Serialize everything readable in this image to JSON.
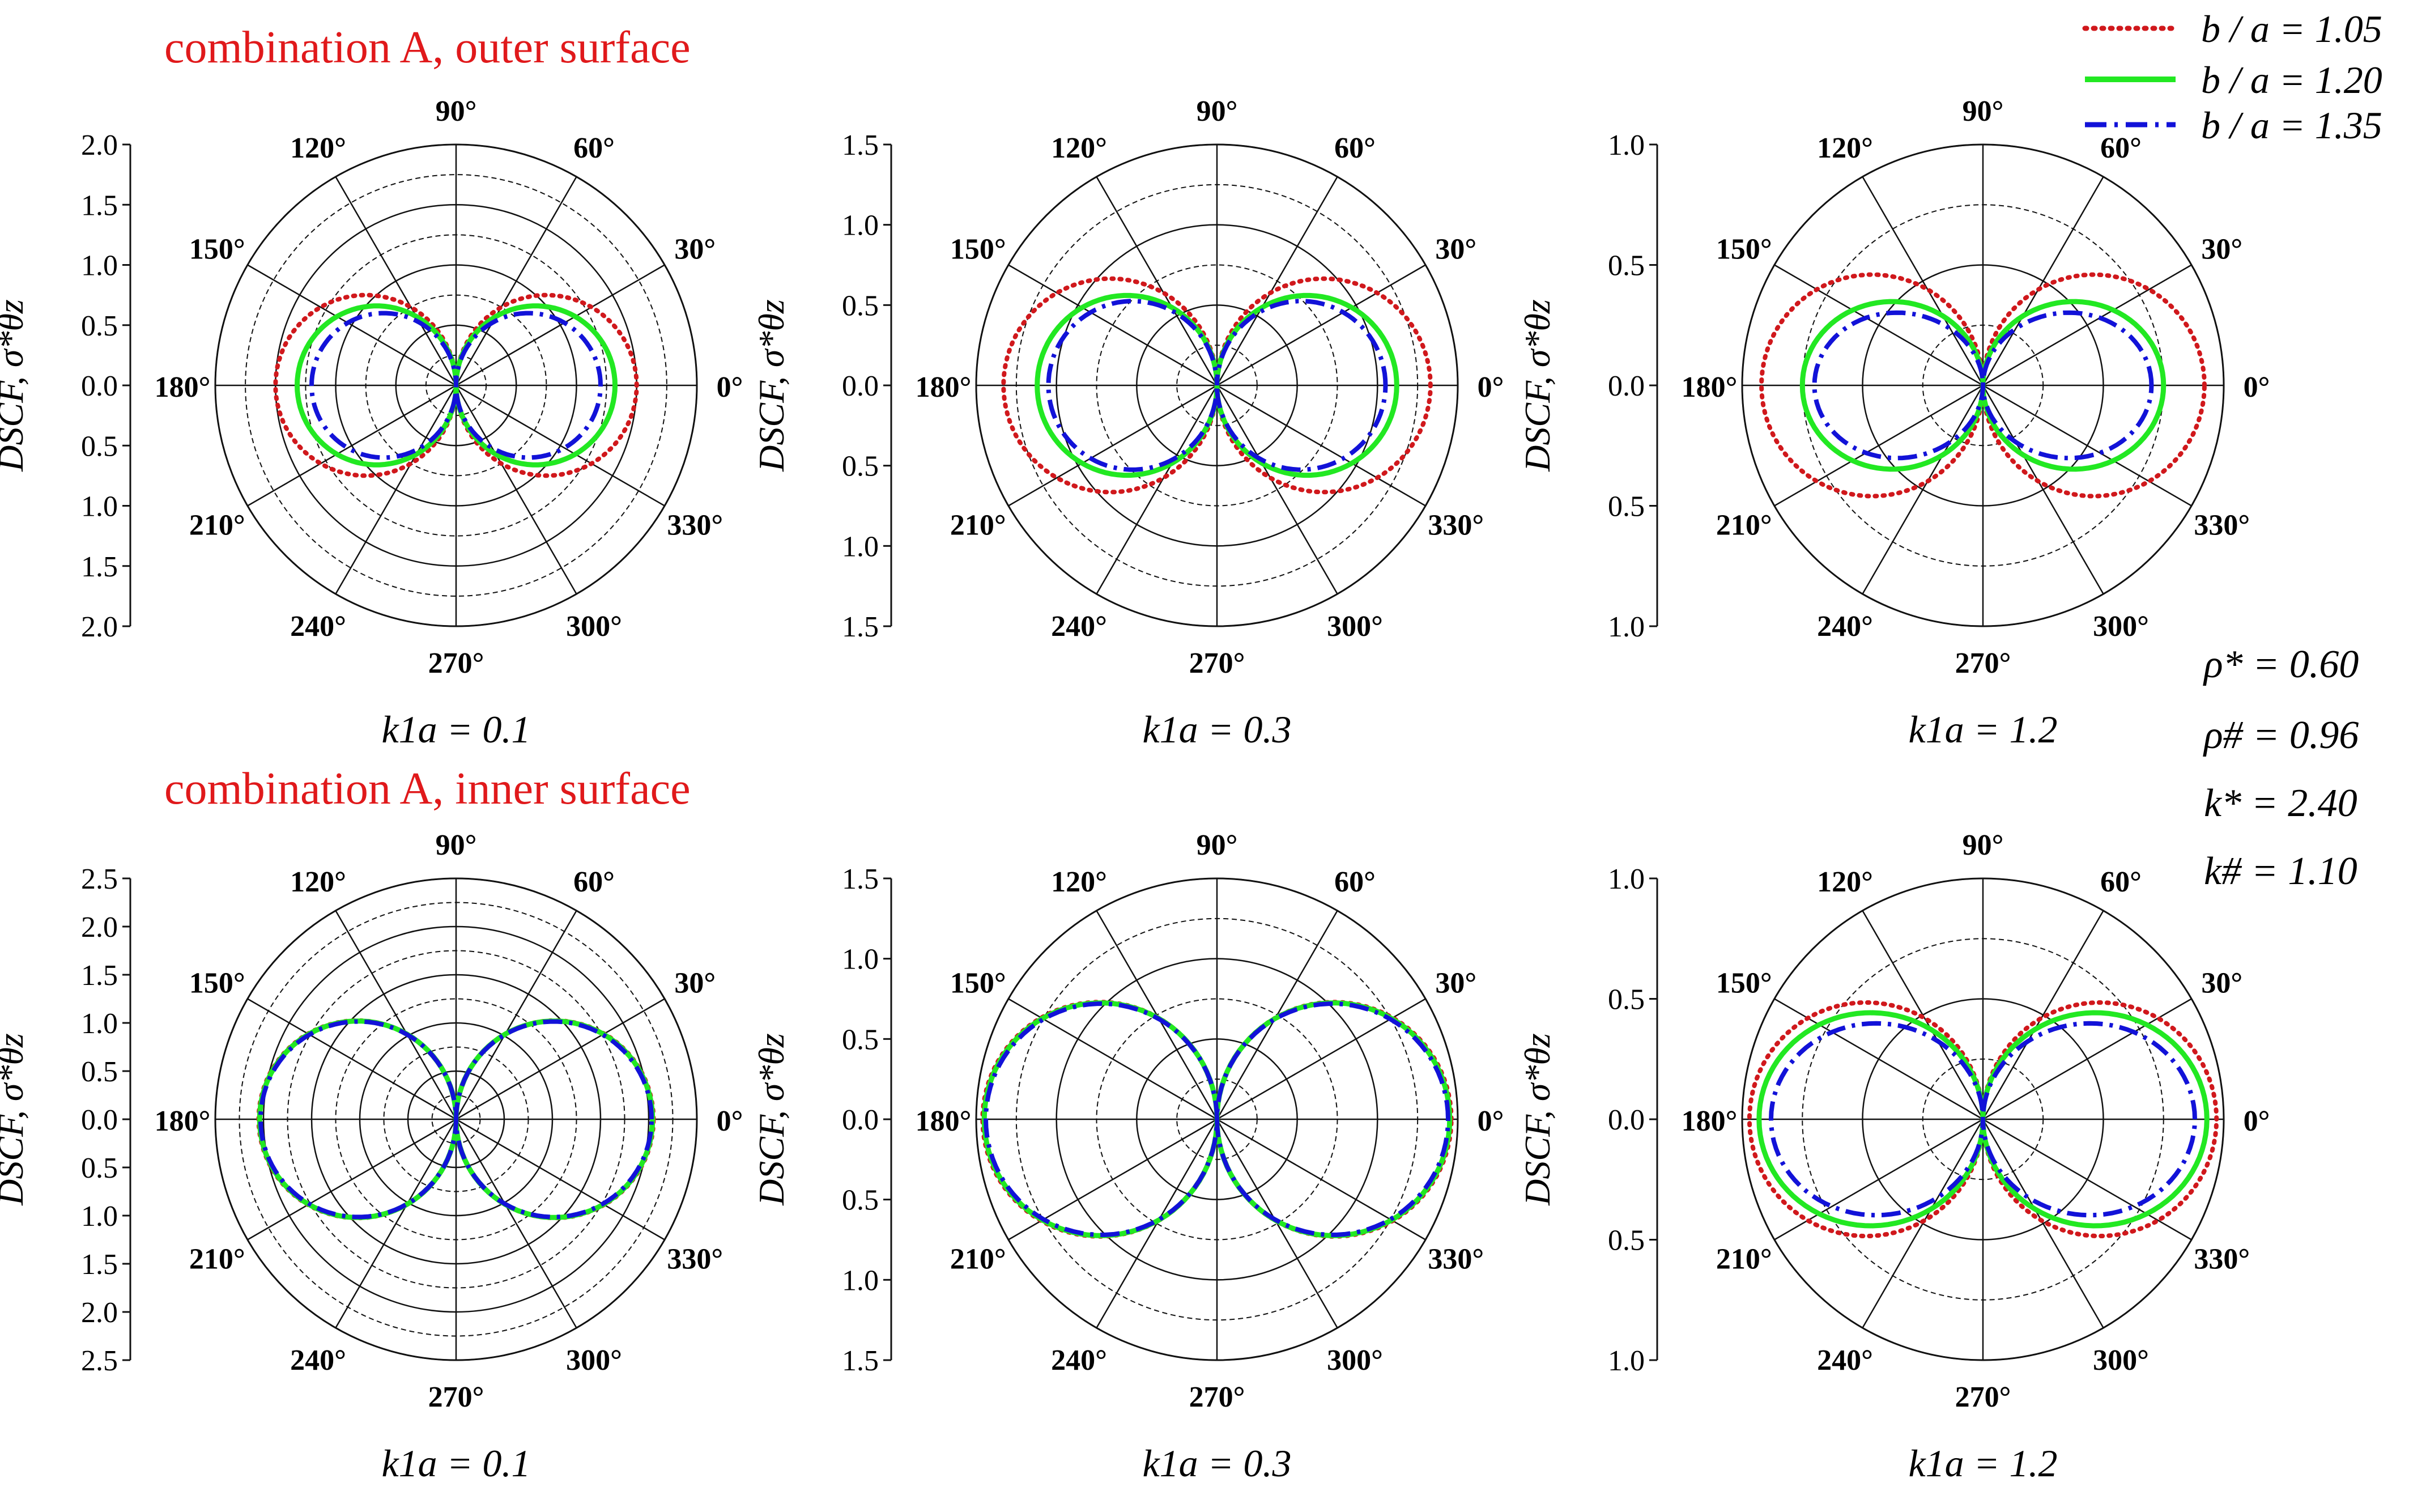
{
  "figure": {
    "row_titles": [
      "combination A, outer surface",
      "combination A, inner surface"
    ],
    "row_title_color": "#e0191b",
    "y_axis_label": "DSCF, σ*θz",
    "angle_labels": [
      "0°",
      "30°",
      "60°",
      "90°",
      "120°",
      "150°",
      "180°",
      "210°",
      "240°",
      "270°",
      "300°",
      "330°"
    ],
    "legend": [
      {
        "label": "b / a = 1.05",
        "color": "#d0181c",
        "style": "dotted"
      },
      {
        "label": "b / a = 1.20",
        "color": "#22e822",
        "style": "solid"
      },
      {
        "label": "b / a = 1.35",
        "color": "#1212d8",
        "style": "dashdot"
      }
    ],
    "parameters": [
      "ρ* = 0.60",
      "ρ# = 0.96",
      "k* = 2.40",
      "k# = 1.10"
    ]
  },
  "chart_data": [
    {
      "type": "polar",
      "row": "outer surface",
      "caption": "k1a = 0.1",
      "rmax": 2.0,
      "rticks": [
        "2.0",
        "1.5",
        "1.0",
        "0.5",
        "0.0",
        "0.5",
        "1.0",
        "1.5",
        "2.0"
      ],
      "series": [
        {
          "name": "b / a = 1.05",
          "shape": "dipole",
          "r_max": 1.5,
          "dip": 0
        },
        {
          "name": "b / a = 1.20",
          "shape": "dipole",
          "r_max": 1.32,
          "dip": 0
        },
        {
          "name": "b / a = 1.35",
          "shape": "dipole",
          "r_max": 1.2,
          "dip": 0
        }
      ]
    },
    {
      "type": "polar",
      "row": "outer surface",
      "caption": "k1a = 0.3",
      "rmax": 1.5,
      "rticks": [
        "1.5",
        "1.0",
        "0.5",
        "0.0",
        "0.5",
        "1.0",
        "1.5"
      ],
      "series": [
        {
          "name": "b / a = 1.05",
          "shape": "dipole",
          "r_max": 1.33,
          "dip": 0
        },
        {
          "name": "b / a = 1.20",
          "shape": "dipole",
          "r_max": 1.12,
          "dip": 0
        },
        {
          "name": "b / a = 1.35",
          "shape": "dipole",
          "r_max": 1.05,
          "dip": 0
        }
      ]
    },
    {
      "type": "polar",
      "row": "outer surface",
      "caption": "k1a = 1.2",
      "rmax": 1.0,
      "rticks": [
        "1.0",
        "0.5",
        "0.0",
        "0.5",
        "1.0"
      ],
      "series": [
        {
          "name": "b / a = 1.05",
          "shape": "dipole",
          "r_max": 0.92,
          "dip": 0
        },
        {
          "name": "b / a = 1.20",
          "shape": "dipole",
          "r_max": 0.75,
          "dip": 0.15
        },
        {
          "name": "b / a = 1.35",
          "shape": "dipole",
          "r_max": 0.7,
          "dip": 0.3
        }
      ]
    },
    {
      "type": "polar",
      "row": "inner surface",
      "caption": "k1a = 0.1",
      "rmax": 2.5,
      "rticks": [
        "2.5",
        "2.0",
        "1.5",
        "1.0",
        "0.5",
        "0.0",
        "0.5",
        "1.0",
        "1.5",
        "2.0",
        "2.5"
      ],
      "series": [
        {
          "name": "b / a = 1.05",
          "shape": "dipole",
          "r_max": 2.05,
          "dip": 0
        },
        {
          "name": "b / a = 1.20",
          "shape": "dipole",
          "r_max": 2.04,
          "dip": 0
        },
        {
          "name": "b / a = 1.35",
          "shape": "dipole",
          "r_max": 2.03,
          "dip": 0
        }
      ]
    },
    {
      "type": "polar",
      "row": "inner surface",
      "caption": "k1a = 0.3",
      "rmax": 1.5,
      "rticks": [
        "1.5",
        "1.0",
        "0.5",
        "0.0",
        "0.5",
        "1.0",
        "1.5"
      ],
      "series": [
        {
          "name": "b / a = 1.05",
          "shape": "dipole",
          "r_max": 1.46,
          "dip": 0
        },
        {
          "name": "b / a = 1.20",
          "shape": "dipole",
          "r_max": 1.45,
          "dip": 0
        },
        {
          "name": "b / a = 1.35",
          "shape": "dipole",
          "r_max": 1.44,
          "dip": 0
        }
      ]
    },
    {
      "type": "polar",
      "row": "inner surface",
      "caption": "k1a = 1.2",
      "rmax": 1.0,
      "rticks": [
        "1.0",
        "0.5",
        "0.0",
        "0.5",
        "1.0"
      ],
      "series": [
        {
          "name": "b / a = 1.05",
          "shape": "dipole",
          "r_max": 0.97,
          "dip": 0
        },
        {
          "name": "b / a = 1.20",
          "shape": "dipole",
          "r_max": 0.93,
          "dip": 0.1
        },
        {
          "name": "b / a = 1.35",
          "shape": "dipole",
          "r_max": 0.88,
          "dip": 0.2
        }
      ]
    }
  ]
}
